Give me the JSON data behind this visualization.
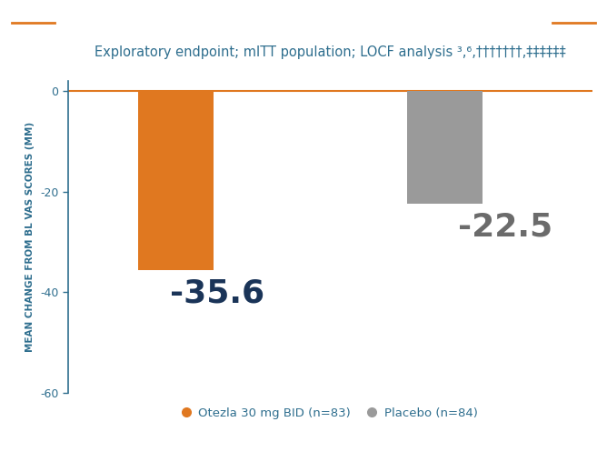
{
  "categories": [
    "Otezla",
    "Placebo"
  ],
  "values": [
    -35.6,
    -22.5
  ],
  "bar_colors": [
    "#E07820",
    "#9A9A9A"
  ],
  "bar_labels": [
    "-35.6",
    "-22.5"
  ],
  "label_colors": [
    "#1A3458",
    "#6B6B6B"
  ],
  "ylabel": "MEAN CHANGE FROM BL VAS SCORES (MM)",
  "ylim": [
    -60,
    2
  ],
  "yticks": [
    0,
    -20,
    -40,
    -60
  ],
  "legend_labels": [
    "Otezla 30 mg BID (n=83)",
    "Placebo (n=84)"
  ],
  "legend_colors": [
    "#E07820",
    "#9A9A9A"
  ],
  "title_text": "Exploratory endpoint; mITT population; LOCF analysis ³,⁶,†††††††,‡‡‡‡‡‡",
  "title_color": "#2E6E8E",
  "ylabel_color": "#2E6E8E",
  "tick_color": "#2E6E8E",
  "title_line_color": "#E07820",
  "background_color": "#FFFFFF",
  "bar_width": 0.28,
  "label_fontsize": 26,
  "title_fontsize": 10.5,
  "ylabel_fontsize": 7.5,
  "legend_fontsize": 9.5
}
